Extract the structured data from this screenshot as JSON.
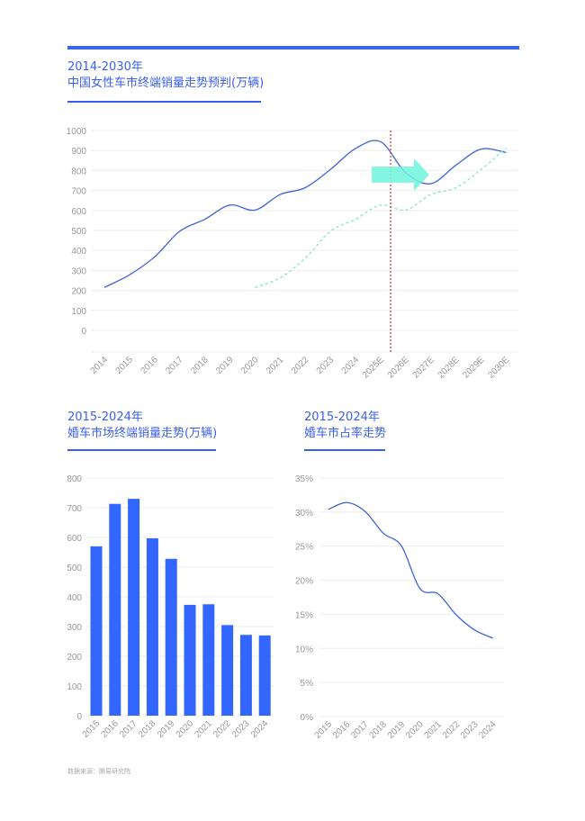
{
  "colors": {
    "accent": "#3366ff",
    "line": "#3d63d8",
    "forecast": "#7de8d0",
    "divider": "#d0282e",
    "arrow": "#6ff5dc"
  },
  "footer": "数据来源：腾易研究院",
  "chart_data": [
    {
      "type": "line",
      "title_line1": "2014-2030年",
      "title_line2": "中国女性车市终端销量走势预判(万辆)",
      "categories": [
        "2014",
        "2015",
        "2016",
        "2017",
        "2018",
        "2019",
        "2020",
        "2021",
        "2022",
        "2023",
        "2024",
        "2025E",
        "2026E",
        "2027E",
        "2028E",
        "2029E",
        "2030E"
      ],
      "yticks": [
        "0",
        "100",
        "200",
        "300",
        "400",
        "500",
        "600",
        "700",
        "800",
        "900",
        "1000"
      ],
      "ylim": [
        0,
        1000
      ],
      "grid": true,
      "series": [
        {
          "style": "solid",
          "values": [
            215,
            278,
            368,
            496,
            556,
            627,
            602,
            680,
            714,
            805,
            910,
            944,
            789,
            734,
            827,
            907,
            890
          ]
        },
        {
          "style": "dashed",
          "values": [
            null,
            null,
            null,
            null,
            null,
            null,
            215,
            263,
            361,
            496,
            556,
            627,
            602,
            680,
            714,
            805,
            913
          ]
        }
      ]
    },
    {
      "type": "bar",
      "title_line1": "2015-2024年",
      "title_line2": "婚车市场终端销量走势(万辆)",
      "categories": [
        "2015",
        "2016",
        "2017",
        "2018",
        "2019",
        "2020",
        "2021",
        "2022",
        "2023",
        "2024"
      ],
      "values": [
        570,
        713,
        730,
        597,
        528,
        373,
        375,
        305,
        272,
        270
      ],
      "yticks": [
        "0",
        "100",
        "200",
        "300",
        "400",
        "500",
        "600",
        "700",
        "800"
      ],
      "ylim": [
        0,
        800
      ],
      "grid": true
    },
    {
      "type": "line",
      "title_line1": "2015-2024年",
      "title_line2": "婚车市占率走势",
      "categories": [
        "2015",
        "2016",
        "2017",
        "2018",
        "2019",
        "2020",
        "2021",
        "2022",
        "2023",
        "2024"
      ],
      "values": [
        30.4,
        31.4,
        30.1,
        26.9,
        25.0,
        18.8,
        18.0,
        14.9,
        12.7,
        11.5
      ],
      "yticks": [
        "0%",
        "5%",
        "10%",
        "15%",
        "20%",
        "25%",
        "30%",
        "35%"
      ],
      "ylim": [
        0,
        35
      ],
      "grid": true
    }
  ]
}
